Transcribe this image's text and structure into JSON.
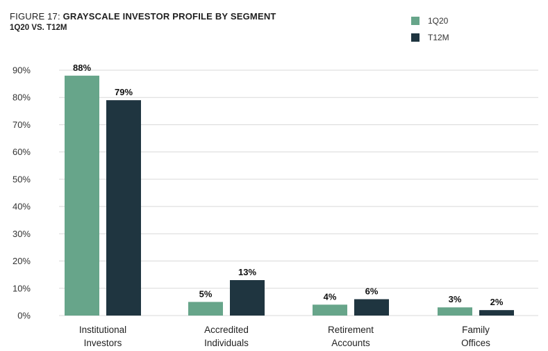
{
  "header": {
    "figure_prefix": "FIGURE 17: ",
    "title": "GRAYSCALE INVESTOR PROFILE BY SEGMENT",
    "subtitle": "1Q20 VS. T12M"
  },
  "legend": [
    {
      "name": "1Q20",
      "color": "#67a58a"
    },
    {
      "name": "T12M",
      "color": "#1f3540"
    }
  ],
  "chart_data": {
    "type": "bar",
    "title": "GRAYSCALE INVESTOR PROFILE BY SEGMENT",
    "subtitle": "1Q20 VS. T12M",
    "categories": [
      [
        "Institutional",
        "Investors"
      ],
      [
        "Accredited",
        "Individuals"
      ],
      [
        "Retirement",
        "Accounts"
      ],
      [
        "Family",
        "Offices"
      ]
    ],
    "series": [
      {
        "name": "1Q20",
        "color": "#67a58a",
        "values": [
          88,
          5,
          4,
          3
        ],
        "labels": [
          "88%",
          "5%",
          "4%",
          "3%"
        ]
      },
      {
        "name": "T12M",
        "color": "#1f3540",
        "values": [
          79,
          13,
          6,
          2
        ],
        "labels": [
          "79%",
          "13%",
          "6%",
          "2%"
        ]
      }
    ],
    "ylim": [
      0,
      90
    ],
    "yticks": [
      0,
      10,
      20,
      30,
      40,
      50,
      60,
      70,
      80,
      90
    ],
    "ytick_labels": [
      "0%",
      "10%",
      "20%",
      "30%",
      "40%",
      "50%",
      "60%",
      "70%",
      "80%",
      "90%"
    ],
    "grid": true,
    "legend_position": "top-right"
  }
}
